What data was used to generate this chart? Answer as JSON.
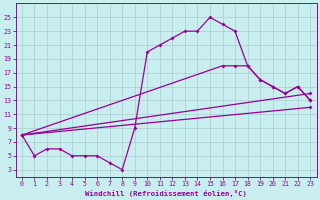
{
  "xlabel": "Windchill (Refroidissement éolien,°C)",
  "bg_color": "#c8eef0",
  "line_color": "#990099",
  "grid_color": "#aacccc",
  "xlim": [
    -0.5,
    23.5
  ],
  "ylim": [
    2,
    27
  ],
  "xticks": [
    0,
    1,
    2,
    3,
    4,
    5,
    6,
    7,
    8,
    9,
    10,
    11,
    12,
    13,
    14,
    15,
    16,
    17,
    18,
    19,
    20,
    21,
    22,
    23
  ],
  "yticks": [
    3,
    5,
    7,
    9,
    11,
    13,
    15,
    17,
    19,
    21,
    23,
    25
  ],
  "lines": [
    {
      "x": [
        0,
        1,
        2,
        3,
        4,
        5,
        6,
        7,
        8,
        9,
        10,
        11,
        12,
        13,
        14,
        15,
        16,
        17,
        18,
        19,
        20,
        21,
        22,
        23
      ],
      "y": [
        8,
        5,
        6,
        6,
        5,
        5,
        5,
        4,
        3,
        9,
        20,
        21,
        22,
        23,
        23,
        25,
        24,
        23,
        18,
        16,
        15,
        14,
        15,
        13
      ]
    },
    {
      "x": [
        0,
        16,
        17,
        18,
        19,
        20,
        21,
        22,
        23
      ],
      "y": [
        8,
        18,
        18,
        18,
        16,
        15,
        14,
        15,
        13
      ]
    },
    {
      "x": [
        0,
        23
      ],
      "y": [
        8,
        14
      ]
    },
    {
      "x": [
        0,
        23
      ],
      "y": [
        8,
        12
      ]
    }
  ]
}
